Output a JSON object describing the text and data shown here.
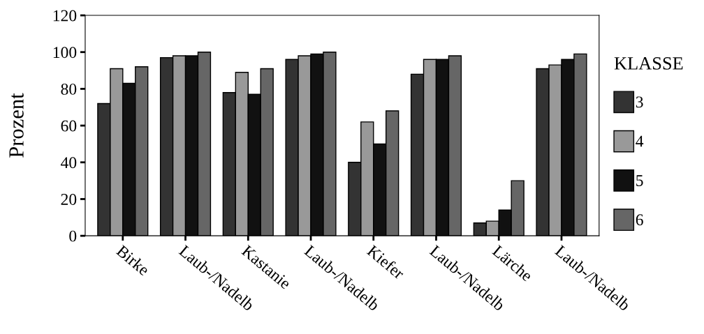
{
  "chart_data": {
    "type": "bar",
    "ylabel": "Prozent",
    "legend_title": "KLASSE",
    "legend": "right",
    "categories": [
      "Birke",
      "Laub-/Nadelb",
      "Kastanie",
      "Laub-/Nadelb",
      "Kiefer",
      "Laub-/Nadelb",
      "Lärche",
      "Laub-/Nadelb"
    ],
    "series": [
      {
        "name": "3",
        "color": "#333333",
        "values": [
          72,
          97,
          78,
          96,
          40,
          88,
          7,
          91
        ]
      },
      {
        "name": "4",
        "color": "#999999",
        "values": [
          91,
          98,
          89,
          98,
          62,
          96,
          8,
          93
        ]
      },
      {
        "name": "5",
        "color": "#111111",
        "values": [
          83,
          98,
          77,
          99,
          50,
          96,
          14,
          96
        ]
      },
      {
        "name": "6",
        "color": "#666666",
        "values": [
          92,
          100,
          91,
          100,
          68,
          98,
          30,
          99
        ]
      }
    ],
    "ylim": [
      0,
      120
    ],
    "yticks": [
      0,
      20,
      40,
      60,
      80,
      100,
      120
    ],
    "grid": false
  }
}
